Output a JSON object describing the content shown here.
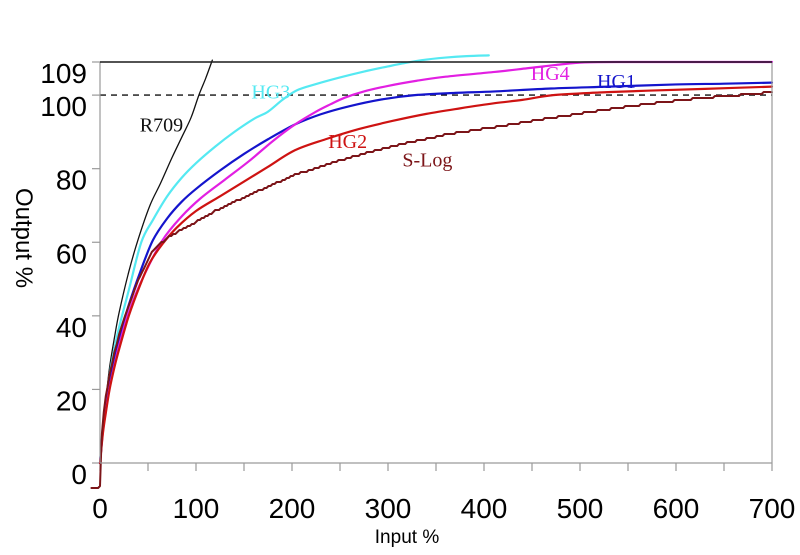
{
  "chart_data": {
    "type": "line",
    "title": "",
    "xlabel": "Input %",
    "ylabel": "Output %",
    "xlim": [
      0,
      700
    ],
    "ylim": [
      0,
      109
    ],
    "x_ticks": [
      0,
      100,
      200,
      300,
      400,
      500,
      600,
      700
    ],
    "x_minor_tick_step": 50,
    "y_ticks": [
      0,
      20,
      40,
      60,
      80,
      100,
      109
    ],
    "grid": false,
    "legend_position": "inline-curve-labels",
    "frame_color": "#9a9a9a",
    "top_frame_color": "#1a1a1a",
    "reference_line": {
      "axis": "y",
      "value": 100,
      "style": "dashed",
      "color": "#111111"
    },
    "series": [
      {
        "name": "R709",
        "color": "#111111",
        "width": 1.3,
        "stepped": false,
        "label": {
          "text": "R709",
          "x": 64,
          "y": 92,
          "color": "#111111"
        },
        "points": [
          [
            0,
            0
          ],
          [
            3,
            10
          ],
          [
            6,
            17
          ],
          [
            10,
            26
          ],
          [
            15,
            34
          ],
          [
            20,
            41
          ],
          [
            30,
            52
          ],
          [
            40,
            61
          ],
          [
            52,
            70
          ],
          [
            63,
            76
          ],
          [
            75,
            83
          ],
          [
            86,
            89
          ],
          [
            95,
            94
          ],
          [
            103,
            100
          ],
          [
            110,
            104.5
          ],
          [
            117,
            109.5
          ]
        ]
      },
      {
        "name": "HG3",
        "color": "#55e9f2",
        "width": 2.2,
        "stepped": false,
        "label": {
          "text": "HG3",
          "x": 178,
          "y": 101,
          "color": "#55e9f2"
        },
        "points": [
          [
            0,
            0
          ],
          [
            3,
            10
          ],
          [
            6,
            16
          ],
          [
            10,
            24
          ],
          [
            15,
            31
          ],
          [
            20,
            37
          ],
          [
            30,
            47
          ],
          [
            43,
            60
          ],
          [
            55,
            66
          ],
          [
            70,
            72.5
          ],
          [
            85,
            77.5
          ],
          [
            100,
            81.5
          ],
          [
            120,
            86
          ],
          [
            140,
            90
          ],
          [
            160,
            93.5
          ],
          [
            175,
            95.5
          ],
          [
            190,
            98.7
          ],
          [
            205,
            101.3
          ],
          [
            225,
            103
          ],
          [
            250,
            104.8
          ],
          [
            275,
            106.4
          ],
          [
            300,
            107.8
          ],
          [
            315,
            108.6
          ],
          [
            335,
            109.5
          ],
          [
            360,
            110.2
          ],
          [
            382,
            110.6
          ],
          [
            405,
            110.8
          ]
        ]
      },
      {
        "name": "HG1",
        "color": "#1414cc",
        "width": 2.2,
        "stepped": false,
        "label": {
          "text": "HG1",
          "x": 538,
          "y": 103.8,
          "color": "#1414cc"
        },
        "points": [
          [
            0,
            0
          ],
          [
            3,
            9
          ],
          [
            6,
            15
          ],
          [
            10,
            22
          ],
          [
            15,
            29
          ],
          [
            20,
            34
          ],
          [
            30,
            43
          ],
          [
            42,
            52
          ],
          [
            55,
            60.5
          ],
          [
            70,
            66.5
          ],
          [
            85,
            71
          ],
          [
            100,
            74.5
          ],
          [
            125,
            79.5
          ],
          [
            150,
            84
          ],
          [
            175,
            88
          ],
          [
            203,
            92
          ],
          [
            230,
            94.8
          ],
          [
            260,
            97
          ],
          [
            295,
            98.9
          ],
          [
            328,
            100
          ],
          [
            370,
            100.6
          ],
          [
            411,
            101
          ],
          [
            470,
            101.8
          ],
          [
            530,
            102.3
          ],
          [
            600,
            102.9
          ],
          [
            650,
            103.1
          ],
          [
            700,
            103.4
          ]
        ]
      },
      {
        "name": "HG4",
        "color": "#e21fe2",
        "width": 2.2,
        "stepped": false,
        "label": {
          "text": "HG4",
          "x": 469,
          "y": 106,
          "color": "#e21fe2"
        },
        "points": [
          [
            0,
            0
          ],
          [
            3,
            8.5
          ],
          [
            6,
            14
          ],
          [
            10,
            20.5
          ],
          [
            15,
            26.5
          ],
          [
            20,
            32
          ],
          [
            30,
            41
          ],
          [
            45,
            50.5
          ],
          [
            65,
            60.5
          ],
          [
            85,
            67
          ],
          [
            105,
            72
          ],
          [
            130,
            77
          ],
          [
            155,
            82
          ],
          [
            180,
            87.5
          ],
          [
            203,
            92
          ],
          [
            225,
            95.5
          ],
          [
            240,
            97.5
          ],
          [
            255,
            99.3
          ],
          [
            275,
            101
          ],
          [
            300,
            102.5
          ],
          [
            330,
            103.9
          ],
          [
            360,
            105
          ],
          [
            411,
            106.3
          ],
          [
            445,
            107.3
          ],
          [
            475,
            108.2
          ],
          [
            505,
            108.9
          ],
          [
            560,
            109
          ],
          [
            700,
            109
          ]
        ]
      },
      {
        "name": "HG2",
        "color": "#ce1312",
        "width": 2.2,
        "stepped": false,
        "label": {
          "text": "HG2",
          "x": 258,
          "y": 87.5,
          "color": "#ce1312"
        },
        "points": [
          [
            0,
            0
          ],
          [
            3,
            8
          ],
          [
            6,
            13.5
          ],
          [
            10,
            20
          ],
          [
            15,
            26
          ],
          [
            20,
            31
          ],
          [
            30,
            40
          ],
          [
            42,
            48.5
          ],
          [
            52,
            54.5
          ],
          [
            65,
            59.5
          ],
          [
            80,
            64
          ],
          [
            100,
            68.5
          ],
          [
            125,
            72.5
          ],
          [
            150,
            76.5
          ],
          [
            175,
            80.5
          ],
          [
            203,
            85
          ],
          [
            235,
            88
          ],
          [
            270,
            90.8
          ],
          [
            305,
            93
          ],
          [
            340,
            94.9
          ],
          [
            375,
            96.4
          ],
          [
            411,
            97.8
          ],
          [
            440,
            98.7
          ],
          [
            472,
            100
          ],
          [
            520,
            100.7
          ],
          [
            570,
            101.2
          ],
          [
            630,
            101.7
          ],
          [
            700,
            102.3
          ]
        ]
      },
      {
        "name": "S-Log",
        "color": "#7c1519",
        "width": 2,
        "stepped": true,
        "label": {
          "text": "S-Log",
          "x": 341,
          "y": 82.5,
          "color": "#7c1519"
        },
        "points": [
          [
            -9,
            -7
          ],
          [
            -2,
            -7
          ],
          [
            0,
            -6
          ],
          [
            1,
            2
          ],
          [
            2,
            8
          ],
          [
            4,
            14
          ],
          [
            6,
            18
          ],
          [
            10,
            24
          ],
          [
            15,
            30
          ],
          [
            20,
            35
          ],
          [
            26,
            40
          ],
          [
            33,
            45
          ],
          [
            42,
            51
          ],
          [
            52,
            56.5
          ],
          [
            62,
            59.5
          ],
          [
            72,
            61.5
          ],
          [
            85,
            63.5
          ],
          [
            100,
            65.5
          ],
          [
            120,
            68.5
          ],
          [
            140,
            71
          ],
          [
            165,
            74
          ],
          [
            203,
            78.3
          ],
          [
            240,
            81.5
          ],
          [
            280,
            84.5
          ],
          [
            320,
            87
          ],
          [
            365,
            89.5
          ],
          [
            411,
            91.3
          ],
          [
            455,
            93.2
          ],
          [
            500,
            95
          ],
          [
            545,
            96.7
          ],
          [
            590,
            98.2
          ],
          [
            630,
            99.3
          ],
          [
            674,
            100.2
          ],
          [
            700,
            100.8
          ]
        ]
      }
    ]
  }
}
